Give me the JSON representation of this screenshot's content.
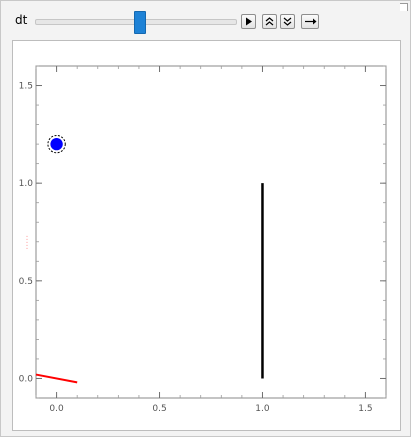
{
  "control": {
    "label": "dt",
    "slider_value_fraction": 0.52
  },
  "buttons": [
    {
      "name": "play-button",
      "icon": "play-icon"
    },
    {
      "name": "faster-button",
      "icon": "double-chevron-up-icon"
    },
    {
      "name": "slower-button",
      "icon": "double-chevron-down-icon"
    },
    {
      "name": "direction-button",
      "icon": "arrow-right-icon"
    }
  ],
  "colors": {
    "slider_thumb": "#1e82d6",
    "ball": "#0000ff",
    "wall": "#000000",
    "paddle": "#ff0000"
  },
  "chart_data": {
    "type": "scatter",
    "xlim": [
      -0.1,
      1.6
    ],
    "ylim": [
      -0.1,
      1.6
    ],
    "x_ticks": [
      "0.0",
      "0.5",
      "1.0",
      "1.5"
    ],
    "y_ticks": [
      "0.0",
      "0.5",
      "1.0",
      "1.5"
    ],
    "x_tick_values": [
      0,
      0.5,
      1.0,
      1.5
    ],
    "y_tick_values": [
      0,
      0.5,
      1.0,
      1.5
    ],
    "ball": {
      "x": 0.0,
      "y": 1.2,
      "r": 0.03
    },
    "wall": {
      "x": 1.0,
      "y0": 0.0,
      "y1": 1.0
    },
    "paddle": {
      "x0": -0.1,
      "y0": 0.02,
      "x1": 0.1,
      "y1": -0.02
    },
    "grid": false
  }
}
